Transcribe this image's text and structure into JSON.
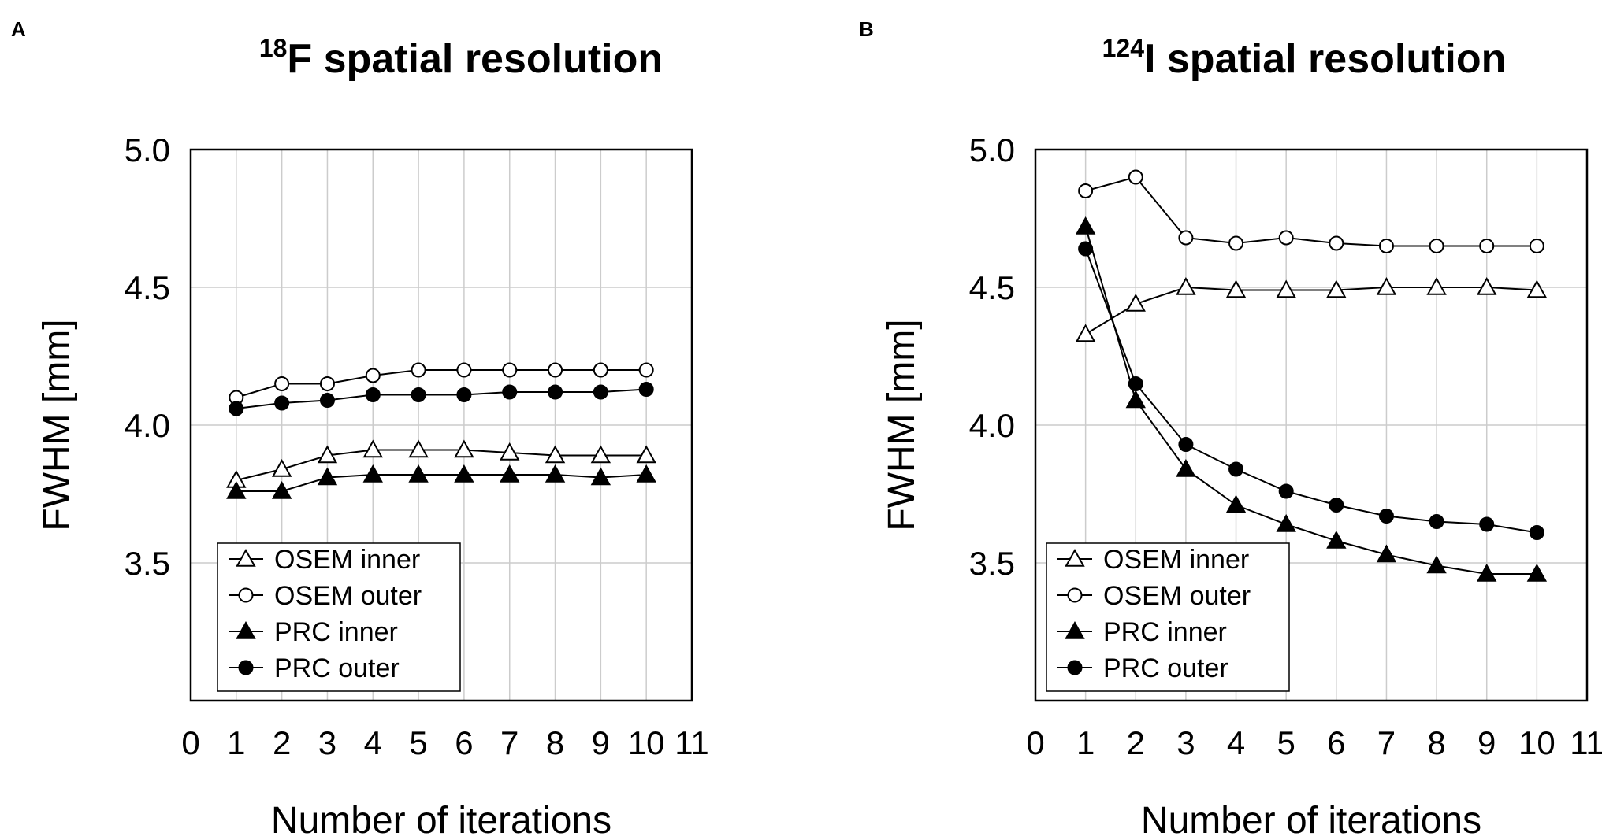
{
  "chart_data": [
    {
      "panel": "A",
      "type": "line",
      "title_sup": "18",
      "title": "F spatial resolution",
      "xlabel": "Number of iterations",
      "ylabel": "FWHM [mm]",
      "xlim": [
        0,
        11
      ],
      "ylim": [
        3.0,
        5.0
      ],
      "xticks": [
        "0",
        "1",
        "2",
        "3",
        "4",
        "5",
        "6",
        "7",
        "8",
        "9",
        "10",
        "11"
      ],
      "yticks": [
        "3.5",
        "4.0",
        "4.5",
        "5.0"
      ],
      "ytick_values": [
        3.5,
        4.0,
        4.5,
        5.0
      ],
      "x": [
        1,
        2,
        3,
        4,
        5,
        6,
        7,
        8,
        9,
        10
      ],
      "legend_position": "bottom-left",
      "series": [
        {
          "name": "OSEM inner",
          "marker": "triangle",
          "filled": false,
          "values": [
            3.8,
            3.84,
            3.89,
            3.91,
            3.91,
            3.91,
            3.9,
            3.89,
            3.89,
            3.89
          ]
        },
        {
          "name": "OSEM outer",
          "marker": "circle",
          "filled": false,
          "values": [
            4.1,
            4.15,
            4.15,
            4.18,
            4.2,
            4.2,
            4.2,
            4.2,
            4.2,
            4.2
          ]
        },
        {
          "name": "PRC inner",
          "marker": "triangle",
          "filled": true,
          "values": [
            3.76,
            3.76,
            3.81,
            3.82,
            3.82,
            3.82,
            3.82,
            3.82,
            3.81,
            3.82
          ]
        },
        {
          "name": "PRC outer",
          "marker": "circle",
          "filled": true,
          "values": [
            4.06,
            4.08,
            4.09,
            4.11,
            4.11,
            4.11,
            4.12,
            4.12,
            4.12,
            4.13
          ]
        }
      ]
    },
    {
      "panel": "B",
      "type": "line",
      "title_sup": "124",
      "title": "I spatial resolution",
      "xlabel": "Number of iterations",
      "ylabel": "FWHM [mm]",
      "xlim": [
        0,
        11
      ],
      "ylim": [
        3.0,
        5.0
      ],
      "xticks": [
        "0",
        "1",
        "2",
        "3",
        "4",
        "5",
        "6",
        "7",
        "8",
        "9",
        "10",
        "11"
      ],
      "yticks": [
        "3.5",
        "4.0",
        "4.5",
        "5.0"
      ],
      "ytick_values": [
        3.5,
        4.0,
        4.5,
        5.0
      ],
      "x": [
        1,
        2,
        3,
        4,
        5,
        6,
        7,
        8,
        9,
        10
      ],
      "legend_position": "bottom-left",
      "series": [
        {
          "name": "OSEM inner",
          "marker": "triangle",
          "filled": false,
          "values": [
            4.33,
            4.44,
            4.5,
            4.49,
            4.49,
            4.49,
            4.5,
            4.5,
            4.5,
            4.49
          ]
        },
        {
          "name": "OSEM outer",
          "marker": "circle",
          "filled": false,
          "values": [
            4.85,
            4.9,
            4.68,
            4.66,
            4.68,
            4.66,
            4.65,
            4.65,
            4.65,
            4.65
          ]
        },
        {
          "name": "PRC inner",
          "marker": "triangle",
          "filled": true,
          "values": [
            4.72,
            4.09,
            3.84,
            3.71,
            3.64,
            3.58,
            3.53,
            3.49,
            3.46,
            3.46
          ]
        },
        {
          "name": "PRC outer",
          "marker": "circle",
          "filled": true,
          "values": [
            4.64,
            4.15,
            3.93,
            3.84,
            3.76,
            3.71,
            3.67,
            3.65,
            3.64,
            3.61
          ]
        }
      ]
    }
  ]
}
